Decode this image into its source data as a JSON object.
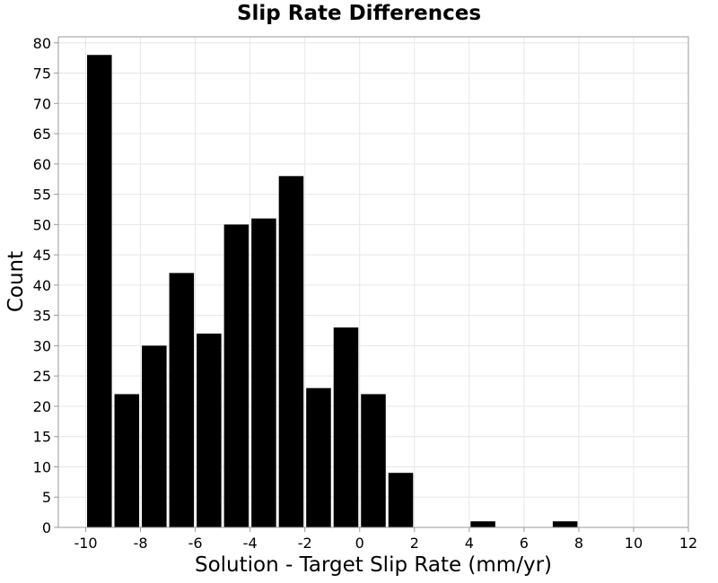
{
  "chart_data": {
    "type": "bar",
    "title": "Slip Rate Differences",
    "xlabel": "Solution - Target Slip Rate (mm/yr)",
    "ylabel": "Count",
    "bin_width": 1,
    "bin_starts": [
      -10,
      -9,
      -8,
      -7,
      -6,
      -5,
      -4,
      -3,
      -2,
      -1,
      0,
      1,
      4,
      7
    ],
    "values": [
      78,
      22,
      30,
      42,
      32,
      50,
      51,
      58,
      23,
      33,
      22,
      9,
      1,
      1
    ],
    "xlim": [
      -11,
      12
    ],
    "ylim": [
      0,
      81
    ],
    "xticks": [
      -10,
      -8,
      -6,
      -4,
      -2,
      0,
      2,
      4,
      6,
      8,
      10,
      12
    ],
    "yticks": [
      0,
      5,
      10,
      15,
      20,
      25,
      30,
      35,
      40,
      45,
      50,
      55,
      60,
      65,
      70,
      75,
      80
    ],
    "grid": true,
    "bar_color": "#000000",
    "grid_color": "#e6e6e6"
  }
}
